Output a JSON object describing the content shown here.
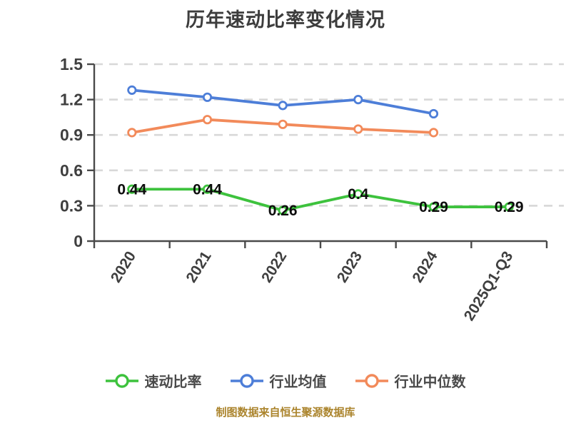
{
  "chart_data": {
    "type": "line",
    "title": "历年速动比率变化情况",
    "categories": [
      "2020",
      "2021",
      "2022",
      "2023",
      "2024",
      "2025Q1-Q3"
    ],
    "series": [
      {
        "name": "速动比率",
        "color": "#3dc23d",
        "values": [
          0.44,
          0.44,
          0.26,
          0.4,
          0.29,
          0.29
        ],
        "labels": [
          "0.44",
          "0.44",
          "0.26",
          "0.4",
          "0.29",
          "0.29"
        ],
        "show_labels": true
      },
      {
        "name": "行业均值",
        "color": "#4d7ed8",
        "values": [
          1.28,
          1.22,
          1.15,
          1.2,
          1.08,
          null
        ],
        "labels": [],
        "show_labels": false
      },
      {
        "name": "行业中位数",
        "color": "#f28a5a",
        "values": [
          0.92,
          1.03,
          0.99,
          0.95,
          0.92,
          null
        ],
        "labels": [],
        "show_labels": false
      }
    ],
    "ylabel": "",
    "xlabel": "",
    "ylim": [
      0,
      1.5
    ],
    "yticks": [
      "0",
      "0.3",
      "0.6",
      "0.9",
      "1.2",
      "1.5"
    ],
    "grid": "dashed horizontal",
    "legend_position": "bottom",
    "footer": "制图数据来自恒生聚源数据库"
  },
  "style_colors": {
    "axis": "#4a4a4a",
    "gridline": "#d8d8d8",
    "tick_label": "#3f3f3f",
    "data_label": "#0d0d0d",
    "marker_fill": "#ffffff"
  }
}
